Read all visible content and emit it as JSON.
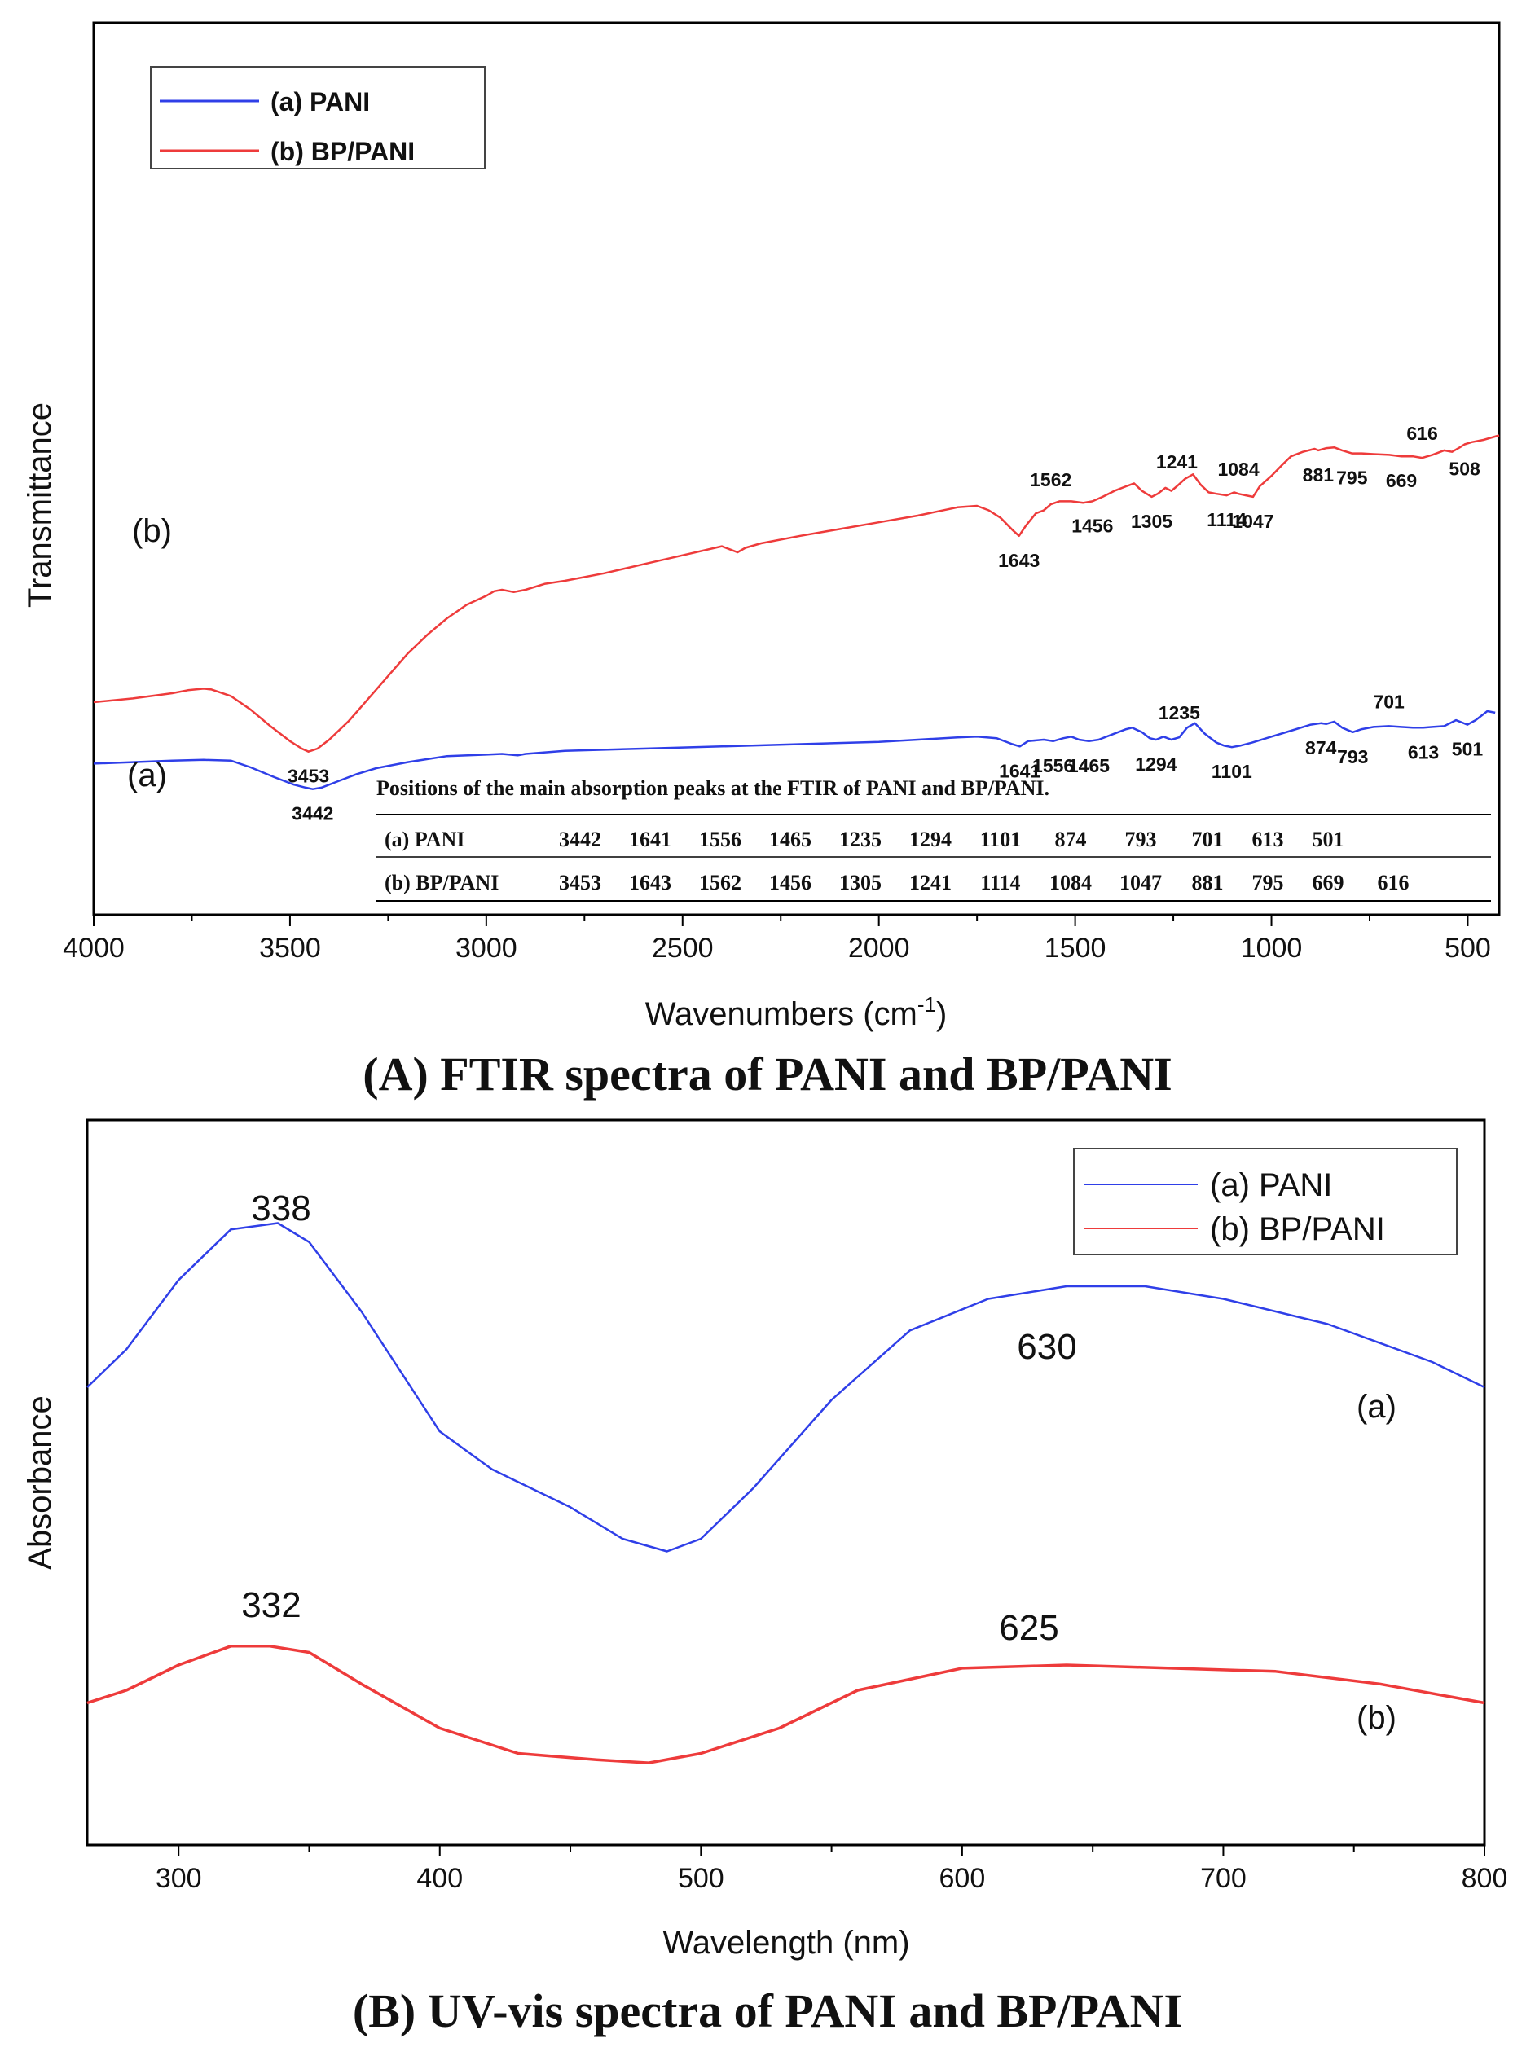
{
  "chart_data": [
    {
      "type": "line",
      "title": "(A) FTIR spectra of PANI and BP/PANI",
      "xlabel": "Wavenumbers (cm-1)",
      "xlabel_base": "Wavenumbers (cm",
      "xlabel_sup": "-1",
      "xlabel_end": ")",
      "ylabel": "Transmittance",
      "xlim": [
        4000,
        420
      ],
      "xticks": [
        "4000",
        "3500",
        "3000",
        "2500",
        "2000",
        "1500",
        "1000",
        "500"
      ],
      "series": [
        {
          "name": "(a) PANI",
          "color": "#2f3fe8",
          "curve_label": "(a)",
          "x": [
            4000,
            3900,
            3800,
            3720,
            3650,
            3600,
            3540,
            3490,
            3460,
            3442,
            3420,
            3380,
            3330,
            3280,
            3200,
            3100,
            3000,
            2960,
            2920,
            2900,
            2850,
            2800,
            2600,
            2400,
            2200,
            2000,
            1900,
            1800,
            1750,
            1700,
            1660,
            1641,
            1620,
            1600,
            1580,
            1556,
            1530,
            1510,
            1490,
            1465,
            1440,
            1400,
            1370,
            1355,
            1330,
            1310,
            1294,
            1275,
            1255,
            1235,
            1215,
            1195,
            1170,
            1140,
            1120,
            1101,
            1080,
            1050,
            1000,
            950,
            900,
            874,
            860,
            840,
            820,
            793,
            770,
            740,
            701,
            670,
            640,
            613,
            590,
            560,
            530,
            520,
            501,
            480,
            450,
            430
          ],
          "y": [
            68,
            70,
            72,
            73,
            72,
            63,
            50,
            40,
            36,
            34,
            36,
            44,
            54,
            62,
            70,
            78,
            80,
            81,
            79,
            81,
            83,
            85,
            88,
            91,
            94,
            97,
            100,
            103,
            104,
            102,
            94,
            91,
            98,
            99,
            100,
            98,
            102,
            104,
            100,
            98,
            100,
            108,
            114,
            116,
            110,
            102,
            100,
            104,
            100,
            103,
            116,
            122,
            108,
            96,
            92,
            90,
            92,
            96,
            104,
            112,
            120,
            122,
            121,
            124,
            116,
            110,
            114,
            117,
            118,
            117,
            116,
            116,
            117,
            118,
            126,
            124,
            120,
            126,
            138,
            136
          ],
          "peaks": [
            "3442",
            "1641",
            "1556",
            "1465",
            "1235",
            "1294",
            "1101",
            "874",
            "793",
            "701",
            "613",
            "501"
          ]
        },
        {
          "name": "(b) BP/PANI",
          "color": "#ee3b3b",
          "curve_label": "(b)",
          "x": [
            4000,
            3900,
            3800,
            3760,
            3720,
            3700,
            3650,
            3600,
            3550,
            3500,
            3470,
            3453,
            3430,
            3400,
            3350,
            3300,
            3250,
            3200,
            3150,
            3100,
            3050,
            3000,
            2980,
            2960,
            2930,
            2900,
            2850,
            2800,
            2700,
            2600,
            2500,
            2400,
            2380,
            2360,
            2340,
            2300,
            2200,
            2100,
            2000,
            1900,
            1800,
            1750,
            1720,
            1690,
            1660,
            1643,
            1625,
            1600,
            1580,
            1562,
            1540,
            1510,
            1480,
            1456,
            1430,
            1400,
            1370,
            1350,
            1330,
            1305,
            1290,
            1270,
            1255,
            1241,
            1220,
            1200,
            1180,
            1160,
            1140,
            1114,
            1095,
            1084,
            1065,
            1047,
            1030,
            1000,
            970,
            950,
            920,
            890,
            881,
            860,
            840,
            820,
            795,
            770,
            740,
            700,
            669,
            640,
            616,
            590,
            560,
            540,
            520,
            508,
            490,
            460,
            420
          ],
          "y": [
            150,
            155,
            162,
            166,
            168,
            167,
            158,
            140,
            118,
            98,
            88,
            84,
            88,
            100,
            125,
            155,
            185,
            215,
            240,
            262,
            280,
            292,
            298,
            300,
            297,
            300,
            308,
            312,
            322,
            334,
            346,
            358,
            354,
            350,
            356,
            362,
            372,
            381,
            390,
            399,
            410,
            412,
            406,
            396,
            380,
            372,
            386,
            402,
            406,
            414,
            418,
            418,
            416,
            418,
            424,
            432,
            438,
            442,
            432,
            424,
            428,
            436,
            432,
            438,
            448,
            454,
            440,
            430,
            428,
            426,
            430,
            428,
            426,
            424,
            438,
            452,
            468,
            478,
            484,
            488,
            486,
            489,
            490,
            486,
            482,
            482,
            481,
            480,
            478,
            478,
            476,
            480,
            486,
            484,
            490,
            494,
            497,
            500,
            506
          ],
          "peaks": [
            "3453",
            "1643",
            "1562",
            "1456",
            "1305",
            "1241",
            "1114",
            "1084",
            "1047",
            "881",
            "795",
            "669",
            "616",
            "508"
          ]
        }
      ],
      "legend": {
        "position": "top-left",
        "entries": [
          "(a) PANI",
          "(b) BP/PANI"
        ]
      },
      "table": {
        "title": "Positions of the main absorption peaks at the FTIR of PANI and BP/PANI.",
        "rows": [
          {
            "label": "(a) PANI",
            "values": [
              "3442",
              "1641",
              "1556",
              "1465",
              "1235",
              "1294",
              "1101",
              "874",
              "793",
              "701",
              "613",
              "501",
              ""
            ]
          },
          {
            "label": "(b) BP/PANI",
            "values": [
              "3453",
              "1643",
              "1562",
              "1456",
              "1305",
              "1241",
              "1114",
              "1084",
              "1047",
              "881",
              "795",
              "669",
              "616"
            ]
          }
        ]
      },
      "grid": false
    },
    {
      "type": "line",
      "title": "(B) UV-vis spectra of PANI and BP/PANI",
      "xlabel": "Wavelength (nm)",
      "ylabel": "Absorbance",
      "xlim": [
        265,
        800
      ],
      "ylim": [
        0,
        100
      ],
      "xticks": [
        "300",
        "400",
        "500",
        "600",
        "700",
        "800"
      ],
      "series": [
        {
          "name": "(a) PANI",
          "color": "#2f3fe8",
          "curve_label": "(a)",
          "peak_labels": [
            "338",
            "630"
          ],
          "x": [
            265,
            280,
            300,
            320,
            338,
            350,
            370,
            400,
            420,
            450,
            470,
            487,
            500,
            520,
            550,
            580,
            610,
            640,
            670,
            700,
            740,
            780,
            800
          ],
          "y": [
            68,
            74,
            85,
            93,
            94,
            91,
            80,
            61,
            55,
            49,
            44,
            42,
            44,
            52,
            66,
            77,
            82,
            84,
            84,
            82,
            78,
            72,
            68
          ],
          "peaks": [
            "338",
            "630"
          ]
        },
        {
          "name": "(b) BP/PANI",
          "color": "#ee3b3b",
          "curve_label": "(b)",
          "peak_labels": [
            "332",
            "625"
          ],
          "x": [
            265,
            280,
            300,
            320,
            335,
            350,
            370,
            400,
            430,
            460,
            480,
            500,
            530,
            560,
            600,
            640,
            680,
            720,
            760,
            800
          ],
          "y": [
            18,
            20,
            24,
            27,
            27,
            26,
            21,
            14,
            10,
            9,
            8.5,
            10,
            14,
            20,
            23.5,
            24,
            23.5,
            23,
            21,
            18
          ],
          "peaks": [
            "332",
            "625"
          ]
        }
      ],
      "legend": {
        "position": "top-right",
        "entries": [
          "(a) PANI",
          "(b) BP/PANI"
        ]
      },
      "grid": false
    }
  ]
}
